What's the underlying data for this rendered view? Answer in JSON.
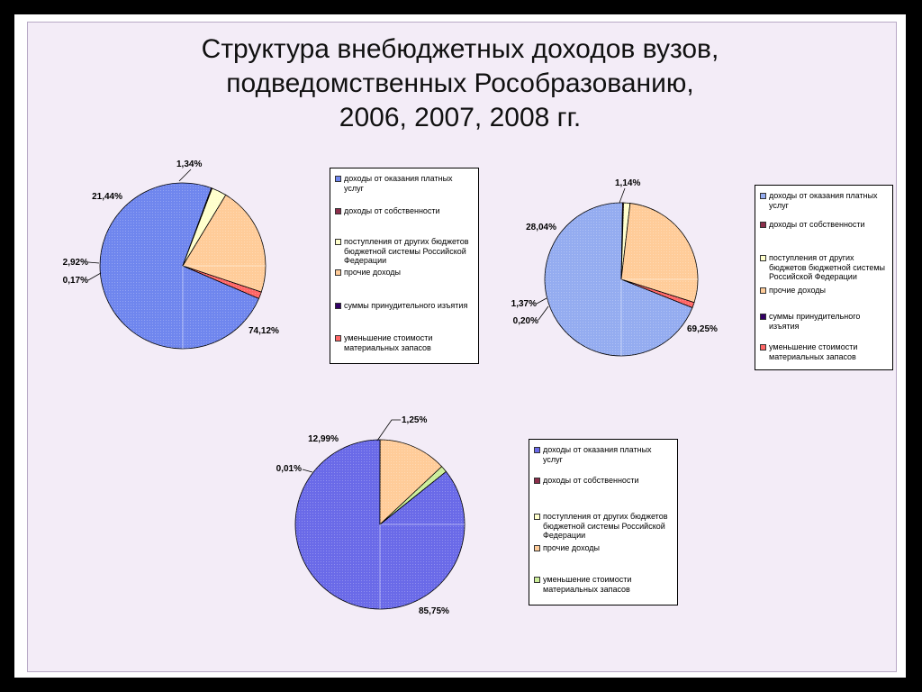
{
  "title": {
    "line1": "Структура внебюджетных доходов вузов,",
    "line2": "подведомственных Рособразованию,",
    "line3": "2006, 2007, 2008 гг."
  },
  "colors": {
    "paid_services": "#6f86ee",
    "property_income": "#8b2e4a",
    "other_budgets": "#ffffcc",
    "other_income": "#ffcc99",
    "forced_seizure": "#330066",
    "reduction_red": "#ff6666",
    "reduction_green": "#ccee99"
  },
  "chart_data": [
    {
      "type": "pie",
      "title": "",
      "slices": [
        {
          "label": "доходы от оказания платных услуг",
          "value": 74.12,
          "value_label": "74,12%",
          "color": "#6f86ee"
        },
        {
          "label": "доходы от собственности",
          "value": 0.17,
          "value_label": "0,17%",
          "color": "#8b2e4a"
        },
        {
          "label": "поступления от других бюджетов бюджетной системы Российской Федерации",
          "value": 2.92,
          "value_label": "2,92%",
          "color": "#ffffcc"
        },
        {
          "label": "прочие доходы",
          "value": 21.44,
          "value_label": "21,44%",
          "color": "#ffcc99"
        },
        {
          "label": "суммы принудительного изъятия",
          "value": 0.0,
          "value_label": "",
          "color": "#330066"
        },
        {
          "label": "уменьшение стоимости материальных запасов",
          "value": 1.34,
          "value_label": "1,34%",
          "color": "#ff6666"
        }
      ],
      "legend": [
        "доходы от оказания платных услуг",
        "доходы от собственности",
        "поступления от других бюджетов бюджетной системы Российской Федерации",
        "прочие доходы",
        "суммы принудительного изъятия",
        "уменьшение стоимости материальных запасов"
      ],
      "legend_position": "right"
    },
    {
      "type": "pie",
      "title": "",
      "slices": [
        {
          "label": "доходы от оказания платных услуг",
          "value": 69.25,
          "value_label": "69,25%",
          "color": "#94acf0"
        },
        {
          "label": "доходы от собственности",
          "value": 0.2,
          "value_label": "0,20%",
          "color": "#8b2e4a"
        },
        {
          "label": "поступления от других бюджетов бюджетной системы Российской Федерации",
          "value": 1.37,
          "value_label": "1,37%",
          "color": "#ffffcc"
        },
        {
          "label": "прочие доходы",
          "value": 28.04,
          "value_label": "28,04%",
          "color": "#ffcc99"
        },
        {
          "label": "суммы принудительного изъятия",
          "value": 0.0,
          "value_label": "",
          "color": "#330066"
        },
        {
          "label": "уменьшение стоимости материальных запасов",
          "value": 1.14,
          "value_label": "1,14%",
          "color": "#ff6666"
        }
      ],
      "legend": [
        "доходы от оказания платных услуг",
        "доходы от собственности",
        "поступления от других бюджетов бюджетной системы Российской Федерации",
        "прочие доходы",
        "суммы принудительного изъятия",
        "уменьшение стоимости материальных запасов"
      ],
      "legend_position": "right"
    },
    {
      "type": "pie",
      "title": "",
      "slices": [
        {
          "label": "доходы от оказания платных услуг",
          "value": 85.75,
          "value_label": "85,75%",
          "color": "#6a6ae8"
        },
        {
          "label": "доходы от собственности",
          "value": 0.01,
          "value_label": "0,01%",
          "color": "#8b2e4a"
        },
        {
          "label": "поступления от других бюджетов бюджетной системы Российской Федерации",
          "value": 0.0,
          "value_label": "",
          "color": "#ffffcc"
        },
        {
          "label": "прочие доходы",
          "value": 12.99,
          "value_label": "12,99%",
          "color": "#ffcc99"
        },
        {
          "label": "уменьшение стоимости материальных запасов",
          "value": 1.25,
          "value_label": "1,25%",
          "color": "#ccee99"
        }
      ],
      "legend": [
        "доходы от оказания платных услуг",
        "доходы от собственности",
        "поступления от других бюджетов бюджетной системы Российской Федерации",
        "прочие доходы",
        "уменьшение стоимости материальных запасов"
      ],
      "legend_position": "right"
    }
  ]
}
